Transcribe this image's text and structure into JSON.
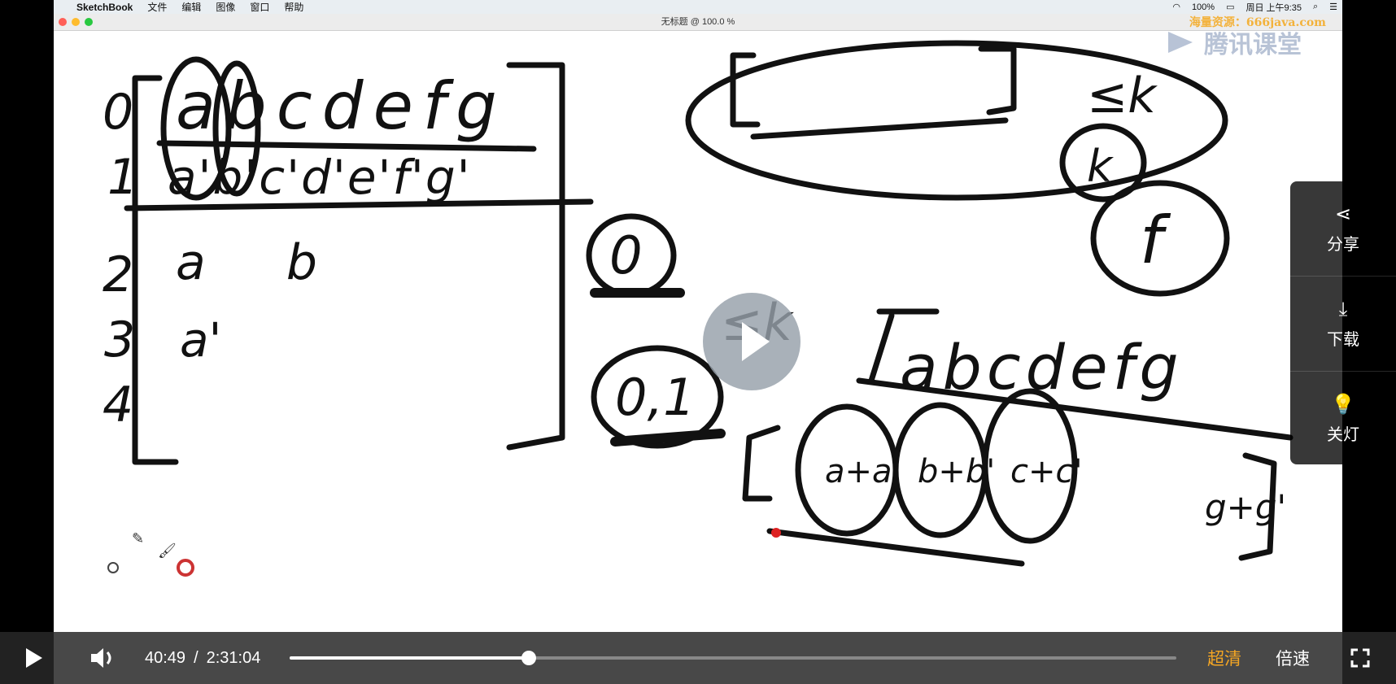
{
  "menubar": {
    "app": "SketchBook",
    "items": [
      "文件",
      "编辑",
      "图像",
      "窗口",
      "帮助"
    ],
    "battery": "100%",
    "clock": "周日 上午9:35"
  },
  "window": {
    "title": "无标题 @ 100.0 %"
  },
  "watermark": {
    "text": "海量资源：666java.com",
    "brand": "腾讯课堂"
  },
  "sketch": {
    "row_numbers": [
      "0",
      "1",
      "2",
      "3",
      "4"
    ],
    "row0": "abcdefg",
    "row1": "a'b'c'd'e'f'g'",
    "row2": "a b",
    "row3": "a'",
    "le_k": "≤k",
    "k": "k",
    "f": "f",
    "zero": "0",
    "zero_one": "0,1",
    "bottom_right": "abcdefg",
    "pairs": [
      "a+a'",
      "b+b'",
      "c+c'",
      "g+g'"
    ]
  },
  "side_panel": {
    "share": "分享",
    "download": "下载",
    "lights_off": "关灯"
  },
  "player": {
    "current_time": "40:49",
    "separator": "/",
    "duration": "2:31:04",
    "progress": 0.27,
    "quality": "超清",
    "speed": "倍速",
    "colors": {
      "quality": "#f5a623"
    }
  }
}
